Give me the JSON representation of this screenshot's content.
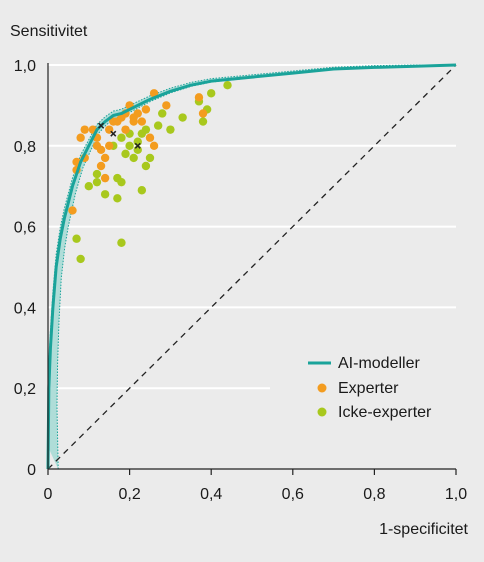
{
  "chart_data": {
    "type": "scatter",
    "ylabel": "Sensitivitet",
    "xlabel": "1-specificitet",
    "xlim": [
      0,
      1.0
    ],
    "ylim": [
      0,
      1.0
    ],
    "x_ticks": [
      "0",
      "0,2",
      "0,4",
      "0,6",
      "0,8",
      "1,0"
    ],
    "y_ticks": [
      "0",
      "0,2",
      "0,4",
      "0,6",
      "0,8",
      "1,0"
    ],
    "grid": "horizontal",
    "legend_position": "bottom-right",
    "colors": {
      "ai": "#1aa39a",
      "ai_band": "#a9dcd6",
      "experts": "#f39c1f",
      "non_experts": "#a8c81d",
      "diagonal": "#222222",
      "background": "#ebebeb",
      "grid": "#ffffff"
    },
    "series": [
      {
        "name": "AI-modeller",
        "kind": "line",
        "points": [
          [
            0.0,
            0.0
          ],
          [
            0.002,
            0.2
          ],
          [
            0.006,
            0.3
          ],
          [
            0.012,
            0.4
          ],
          [
            0.02,
            0.5
          ],
          [
            0.03,
            0.57
          ],
          [
            0.04,
            0.62
          ],
          [
            0.05,
            0.66
          ],
          [
            0.06,
            0.7
          ],
          [
            0.07,
            0.73
          ],
          [
            0.08,
            0.76
          ],
          [
            0.09,
            0.78
          ],
          [
            0.1,
            0.8
          ],
          [
            0.11,
            0.82
          ],
          [
            0.12,
            0.84
          ],
          [
            0.13,
            0.85
          ],
          [
            0.14,
            0.86
          ],
          [
            0.16,
            0.875
          ],
          [
            0.18,
            0.88
          ],
          [
            0.2,
            0.89
          ],
          [
            0.22,
            0.9
          ],
          [
            0.25,
            0.915
          ],
          [
            0.3,
            0.935
          ],
          [
            0.35,
            0.95
          ],
          [
            0.4,
            0.96
          ],
          [
            0.5,
            0.97
          ],
          [
            0.6,
            0.98
          ],
          [
            0.7,
            0.99
          ],
          [
            0.8,
            0.994
          ],
          [
            0.9,
            0.997
          ],
          [
            1.0,
            1.0
          ]
        ],
        "band_halfwidth": 0.025
      },
      {
        "name": "Experter",
        "kind": "scatter",
        "points": [
          [
            0.06,
            0.64
          ],
          [
            0.07,
            0.74
          ],
          [
            0.07,
            0.76
          ],
          [
            0.08,
            0.82
          ],
          [
            0.09,
            0.84
          ],
          [
            0.09,
            0.77
          ],
          [
            0.11,
            0.84
          ],
          [
            0.12,
            0.8
          ],
          [
            0.12,
            0.82
          ],
          [
            0.13,
            0.79
          ],
          [
            0.13,
            0.75
          ],
          [
            0.14,
            0.77
          ],
          [
            0.14,
            0.72
          ],
          [
            0.15,
            0.8
          ],
          [
            0.15,
            0.84
          ],
          [
            0.16,
            0.86
          ],
          [
            0.17,
            0.86
          ],
          [
            0.18,
            0.87
          ],
          [
            0.19,
            0.88
          ],
          [
            0.19,
            0.84
          ],
          [
            0.2,
            0.9
          ],
          [
            0.21,
            0.86
          ],
          [
            0.21,
            0.87
          ],
          [
            0.22,
            0.88
          ],
          [
            0.23,
            0.86
          ],
          [
            0.24,
            0.89
          ],
          [
            0.25,
            0.82
          ],
          [
            0.26,
            0.8
          ],
          [
            0.26,
            0.93
          ],
          [
            0.29,
            0.9
          ],
          [
            0.37,
            0.92
          ],
          [
            0.38,
            0.88
          ]
        ]
      },
      {
        "name": "Icke-experter",
        "kind": "scatter",
        "points": [
          [
            0.07,
            0.57
          ],
          [
            0.08,
            0.52
          ],
          [
            0.1,
            0.7
          ],
          [
            0.12,
            0.71
          ],
          [
            0.12,
            0.73
          ],
          [
            0.14,
            0.68
          ],
          [
            0.17,
            0.67
          ],
          [
            0.17,
            0.72
          ],
          [
            0.18,
            0.56
          ],
          [
            0.18,
            0.71
          ],
          [
            0.19,
            0.78
          ],
          [
            0.2,
            0.8
          ],
          [
            0.2,
            0.83
          ],
          [
            0.21,
            0.77
          ],
          [
            0.22,
            0.79
          ],
          [
            0.22,
            0.81
          ],
          [
            0.23,
            0.83
          ],
          [
            0.24,
            0.84
          ],
          [
            0.23,
            0.69
          ],
          [
            0.24,
            0.75
          ],
          [
            0.25,
            0.77
          ],
          [
            0.27,
            0.85
          ],
          [
            0.28,
            0.88
          ],
          [
            0.3,
            0.84
          ],
          [
            0.33,
            0.87
          ],
          [
            0.37,
            0.91
          ],
          [
            0.38,
            0.86
          ],
          [
            0.39,
            0.89
          ],
          [
            0.4,
            0.93
          ],
          [
            0.44,
            0.95
          ],
          [
            0.16,
            0.8
          ],
          [
            0.18,
            0.82
          ]
        ]
      },
      {
        "name": "",
        "kind": "marker",
        "points": [
          [
            0.13,
            0.85
          ],
          [
            0.16,
            0.83
          ],
          [
            0.22,
            0.8
          ]
        ]
      }
    ]
  }
}
